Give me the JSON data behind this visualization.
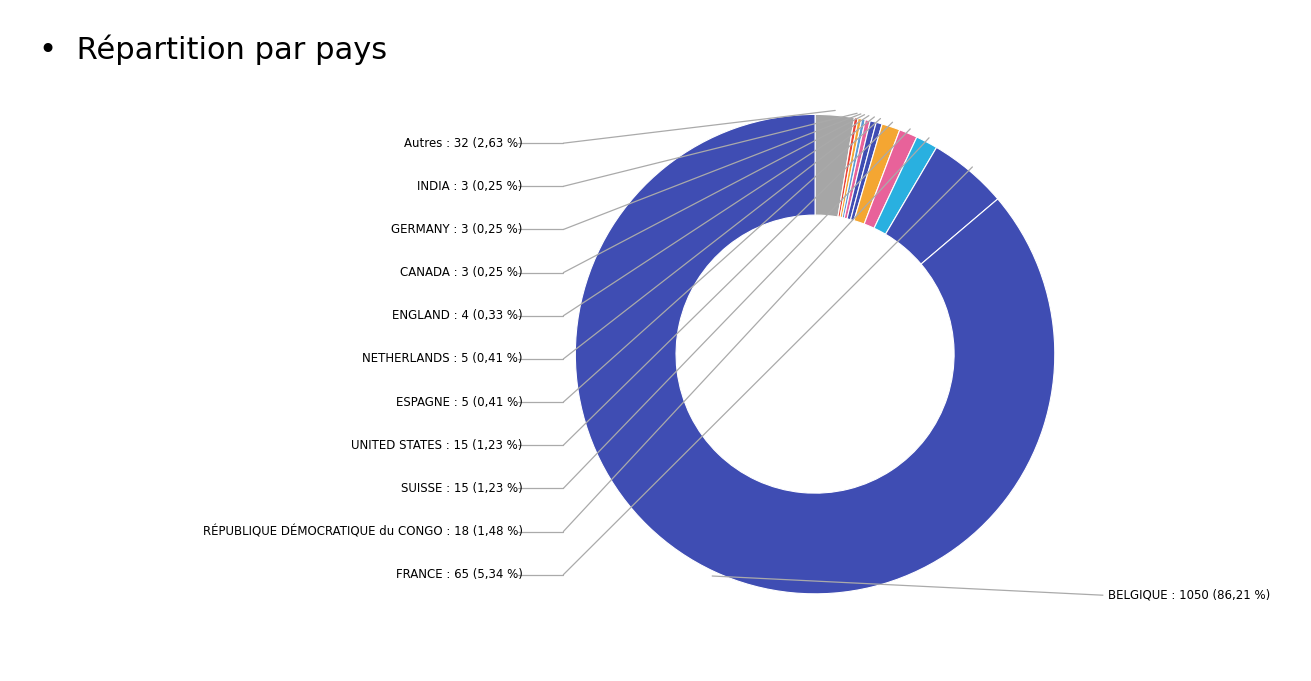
{
  "title": "•  Répartition par pays",
  "slice_data": [
    {
      "label": "Autres : 32 (2,63 %)",
      "value": 32,
      "color": "#a6a6a6"
    },
    {
      "label": "INDIA : 3 (0,25 %)",
      "value": 3,
      "color": "#e84338"
    },
    {
      "label": "GERMANY : 3 (0,25 %)",
      "value": 3,
      "color": "#f4a632"
    },
    {
      "label": "CANADA : 3 (0,25 %)",
      "value": 3,
      "color": "#5b9bd5"
    },
    {
      "label": "ENGLAND : 4 (0,33 %)",
      "value": 4,
      "color": "#e8629a"
    },
    {
      "label": "NETHERLANDS : 5 (0,41 %)",
      "value": 5,
      "color": "#3f4db3"
    },
    {
      "label": "ESPAGNE : 5 (0,41 %)",
      "value": 5,
      "color": "#3f4db3"
    },
    {
      "label": "UNITED STATES : 15 (1,23 %)",
      "value": 15,
      "color": "#f4a632"
    },
    {
      "label": "SUISSE : 15 (1,23 %)",
      "value": 15,
      "color": "#e8629a"
    },
    {
      "label": "RÉPUBLIQUE DÉMOCRATIQUE du CONGO : 18 (1,48 %)",
      "value": 18,
      "color": "#29b0e0"
    },
    {
      "label": "FRANCE : 65 (5,34 %)",
      "value": 65,
      "color": "#3f4db3"
    },
    {
      "label": "BELGIQUE : 1050 (86,21 %)",
      "value": 1050,
      "color": "#3f4db3"
    }
  ],
  "belgique_label": "BELGIQUE : 1050 (86,21 %)",
  "background_color": "#ffffff",
  "title_fontsize": 22,
  "label_fontsize": 8.5,
  "startangle": 90,
  "donut_width": 0.42
}
